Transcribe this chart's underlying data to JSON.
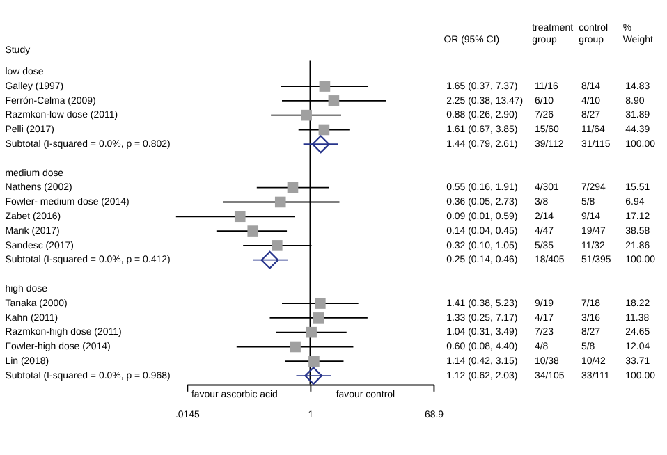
{
  "chart_data": {
    "type": "scatter",
    "orientation": "horizontal",
    "ylabel": "Study",
    "log": "x",
    "categories": [
      "low dose",
      "Galley (1997)",
      "Ferrón-Celma (2009)",
      "Razmkon-low dose (2011)",
      "Pelli (2017)",
      "Subtotal  (I-squared = 0.0%, p = 0.802)",
      null,
      "medium dose",
      "Nathens (2002)",
      "Fowler- medium dose (2014)",
      "Zabet (2016)",
      "Marik (2017)",
      "Sandesc (2017)",
      "Subtotal  (I-squared = 0.0%, p = 0.412)",
      null,
      "high dose",
      "Tanaka (2000)",
      "Kahn (2011)",
      "Razmkon-high dose (2011)",
      "Fowler-high dose (2014)",
      "Lin (2018)",
      "Subtotal  (I-squared = 0.0%, p = 0.968)"
    ],
    "series": [
      {
        "marker": "square",
        "color": "#a0a0a0",
        "values": [
          null,
          1.65,
          2.25,
          0.88,
          1.61,
          null,
          null,
          null,
          0.55,
          0.36,
          0.09,
          0.14,
          0.32,
          null,
          null,
          null,
          1.41,
          1.33,
          1.04,
          0.6,
          1.14,
          null
        ],
        "errors": [
          null,
          [
            0.37,
            7.37
          ],
          [
            0.38,
            13.47
          ],
          [
            0.26,
            2.9
          ],
          [
            0.67,
            3.85
          ],
          null,
          null,
          null,
          [
            0.16,
            1.91
          ],
          [
            0.05,
            2.73
          ],
          [
            0.01,
            0.59
          ],
          [
            0.04,
            0.45
          ],
          [
            0.1,
            1.05
          ],
          null,
          null,
          null,
          [
            0.38,
            5.23
          ],
          [
            0.25,
            7.17
          ],
          [
            0.31,
            3.49
          ],
          [
            0.08,
            4.4
          ],
          [
            0.42,
            3.15
          ],
          null
        ]
      },
      {
        "marker": "diamond",
        "color": "#27348b",
        "values": [
          null,
          null,
          null,
          null,
          null,
          1.44,
          null,
          null,
          null,
          null,
          null,
          null,
          null,
          0.25,
          null,
          null,
          null,
          null,
          null,
          null,
          null,
          1.12
        ],
        "errors": [
          null,
          null,
          null,
          null,
          null,
          [
            0.79,
            2.61
          ],
          null,
          null,
          null,
          null,
          null,
          null,
          null,
          [
            0.14,
            0.46
          ],
          null,
          null,
          null,
          null,
          null,
          null,
          null,
          [
            0.62,
            2.03
          ]
        ]
      }
    ],
    "xlim": [
      0.0145,
      68.9
    ],
    "xticks": [
      {
        "value": 0.0145,
        "label": ".0145"
      },
      1,
      68.9
    ],
    "ref_lines": [
      {
        "axis": "x",
        "value": 1,
        "color": "#000000",
        "line_style": "solid"
      }
    ],
    "grid": false,
    "annotations": [
      "OR (95% CI)",
      "treatment group",
      "control group",
      "% Weight",
      "favour ascorbic acid",
      "favour control",
      "1.65 (0.37, 7.37)",
      "11/16",
      "8/14",
      "14.83",
      "2.25 (0.38, 13.47)",
      "6/10",
      "4/10",
      "8.90",
      "0.88 (0.26, 2.90)",
      "7/26",
      "8/27",
      "31.89",
      "1.61 (0.67, 3.85)",
      "15/60",
      "11/64",
      "44.39",
      "1.44 (0.79, 2.61)",
      "39/112",
      "31/115",
      "100.00",
      "0.55 (0.16, 1.91)",
      "4/301",
      "7/294",
      "15.51",
      "0.36 (0.05, 2.73)",
      "3/8",
      "5/8",
      "6.94",
      "0.09 (0.01, 0.59)",
      "2/14",
      "9/14",
      "17.12",
      "0.14 (0.04, 0.45)",
      "4/47",
      "19/47",
      "38.58",
      "0.32 (0.10, 1.05)",
      "5/35",
      "11/32",
      "21.86",
      "0.25 (0.14, 0.46)",
      "18/405",
      "51/395",
      "100.00",
      "1.41 (0.38, 5.23)",
      "9/19",
      "7/18",
      "18.22",
      "1.33 (0.25, 7.17)",
      "4/17",
      "3/16",
      "11.38",
      "1.04 (0.31, 3.49)",
      "7/23",
      "8/27",
      "24.65",
      "0.60 (0.08, 4.40)",
      "4/8",
      "5/8",
      "12.04",
      "1.14 (0.42, 3.15)",
      "10/38",
      "10/42",
      "33.71",
      "1.12 (0.62, 2.03)",
      "34/105",
      "33/111",
      "100.00"
    ]
  }
}
